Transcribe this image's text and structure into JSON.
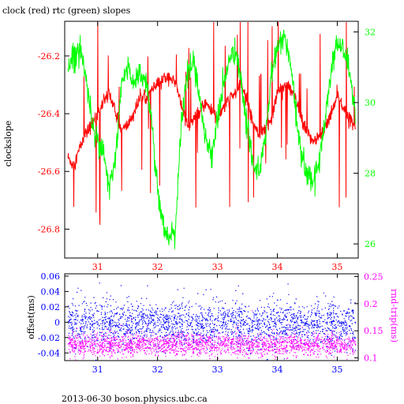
{
  "chart_data": [
    {
      "type": "line",
      "title": "clock (red) rtc (green) slopes",
      "ylabel_left": "clockslope",
      "x_range": [
        30.45,
        35.35
      ],
      "x_ticks": [
        "31",
        "32",
        "33",
        "34",
        "35"
      ],
      "y_left": {
        "range": [
          -26.9,
          -26.08
        ],
        "ticks": [
          "-26.8",
          "-26.6",
          "-26.4",
          "-26.2"
        ],
        "color": "#ff0000"
      },
      "y_right": {
        "range": [
          25.6,
          32.3
        ],
        "ticks": [
          "26",
          "28",
          "30",
          "32"
        ],
        "color": "#00ff00"
      },
      "series": [
        {
          "name": "clock",
          "color": "#ff0000",
          "axis": "left",
          "x": [
            30.5,
            30.6,
            30.7,
            30.8,
            30.9,
            31.0,
            31.1,
            31.2,
            31.3,
            31.4,
            31.5,
            31.6,
            31.7,
            31.8,
            31.9,
            32.0,
            32.1,
            32.2,
            32.3,
            32.4,
            32.5,
            32.6,
            32.7,
            32.8,
            32.9,
            33.0,
            33.1,
            33.2,
            33.3,
            33.4,
            33.5,
            33.6,
            33.7,
            33.8,
            33.9,
            34.0,
            34.1,
            34.2,
            34.3,
            34.4,
            34.5,
            34.6,
            34.7,
            34.8,
            34.9,
            35.0,
            35.1,
            35.2,
            35.3
          ],
          "y": [
            -26.55,
            -26.58,
            -26.52,
            -26.47,
            -26.44,
            -26.4,
            -26.36,
            -26.33,
            -26.4,
            -26.46,
            -26.44,
            -26.4,
            -26.35,
            -26.34,
            -26.32,
            -26.3,
            -26.28,
            -26.27,
            -26.3,
            -26.36,
            -26.45,
            -26.42,
            -26.4,
            -26.36,
            -26.39,
            -26.42,
            -26.38,
            -26.35,
            -26.33,
            -26.3,
            -26.36,
            -26.43,
            -26.47,
            -26.45,
            -26.42,
            -26.33,
            -26.3,
            -26.31,
            -26.35,
            -26.42,
            -26.47,
            -26.49,
            -26.48,
            -26.45,
            -26.4,
            -26.33,
            -26.38,
            -26.42,
            -26.44
          ]
        },
        {
          "name": "rtc",
          "color": "#00ff00",
          "axis": "right",
          "x": [
            30.5,
            30.6,
            30.7,
            30.8,
            30.9,
            31.0,
            31.1,
            31.2,
            31.3,
            31.4,
            31.5,
            31.6,
            31.7,
            31.8,
            31.9,
            32.0,
            32.1,
            32.2,
            32.3,
            32.4,
            32.5,
            32.6,
            32.7,
            32.8,
            32.9,
            33.0,
            33.1,
            33.2,
            33.3,
            33.4,
            33.5,
            33.6,
            33.7,
            33.8,
            33.9,
            34.0,
            34.1,
            34.2,
            34.3,
            34.4,
            34.5,
            34.6,
            34.7,
            34.8,
            34.9,
            35.0,
            35.1,
            35.2,
            35.3
          ],
          "y": [
            31.0,
            31.3,
            31.6,
            30.8,
            29.5,
            29.0,
            28.5,
            27.5,
            28.5,
            30.5,
            31.0,
            30.6,
            30.8,
            30.7,
            29.5,
            27.5,
            26.6,
            26.0,
            26.5,
            29.5,
            30.8,
            31.2,
            30.2,
            29.0,
            28.5,
            29.5,
            30.5,
            31.2,
            31.5,
            30.5,
            29.2,
            28.3,
            28.0,
            29.0,
            30.8,
            31.5,
            31.9,
            31.3,
            29.8,
            28.5,
            28.0,
            27.8,
            28.3,
            29.6,
            31.0,
            31.7,
            31.5,
            31.0,
            29.6
          ]
        }
      ]
    },
    {
      "type": "scatter",
      "ylabel_left": "offset(ms)",
      "ylabel_right": "rnd-trip(ms)",
      "x_range": [
        30.45,
        35.35
      ],
      "x_ticks": [
        "31",
        "32",
        "33",
        "34",
        "35"
      ],
      "y_left": {
        "range": [
          -0.05,
          0.063
        ],
        "ticks": [
          "-0.04",
          "-0.02",
          "0",
          "0.02",
          "0.04",
          "0.06"
        ],
        "color": "#0000ff"
      },
      "y_right": {
        "range": [
          0.095,
          0.255
        ],
        "ticks": [
          "0.1",
          "0.15",
          "0.2",
          "0.25"
        ],
        "color": "#ff00ff"
      },
      "series": [
        {
          "name": "offset",
          "color": "#0000ff",
          "axis": "left",
          "center": -0.002,
          "spread": 0.014
        },
        {
          "name": "rnd-trip",
          "color": "#ff00ff",
          "axis": "right",
          "center": 0.125,
          "spread": 0.01
        }
      ]
    }
  ],
  "footer": "2013-06-30  boson.physics.ubc.ca"
}
